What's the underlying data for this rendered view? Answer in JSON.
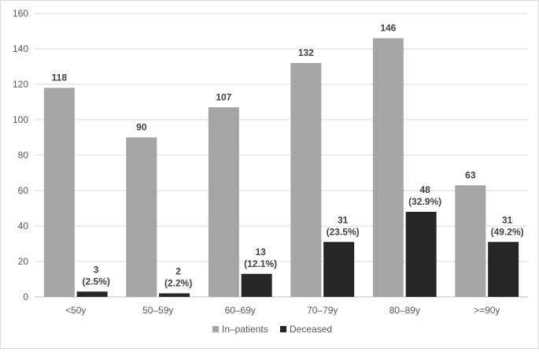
{
  "chart_data": {
    "type": "bar",
    "title": "",
    "xlabel": "",
    "ylabel": "",
    "categories": [
      "<50y",
      "50–59y",
      "60–69y",
      "70–79y",
      "80–89y",
      ">=90y"
    ],
    "series": [
      {
        "name": "In–patients",
        "color": "#a5a5a5",
        "values": [
          118,
          90,
          107,
          132,
          146,
          63
        ],
        "labels": [
          [
            "118"
          ],
          [
            "90"
          ],
          [
            "107"
          ],
          [
            "132"
          ],
          [
            "146"
          ],
          [
            "63"
          ]
        ]
      },
      {
        "name": "Deceased",
        "color": "#262626",
        "values": [
          3,
          2,
          13,
          31,
          48,
          31
        ],
        "labels": [
          [
            "3",
            "(2.5%)"
          ],
          [
            "2",
            "(2.2%)"
          ],
          [
            "13",
            "(12.1%)"
          ],
          [
            "31",
            "(23.5%)"
          ],
          [
            "48",
            "(32.9%)"
          ],
          [
            "31",
            "(49.2%)"
          ]
        ]
      }
    ],
    "yticks": [
      "0",
      "20",
      "40",
      "60",
      "80",
      "100",
      "120",
      "140",
      "160"
    ],
    "ylim": [
      0,
      160
    ],
    "grid": true,
    "legend_position": "bottom"
  }
}
